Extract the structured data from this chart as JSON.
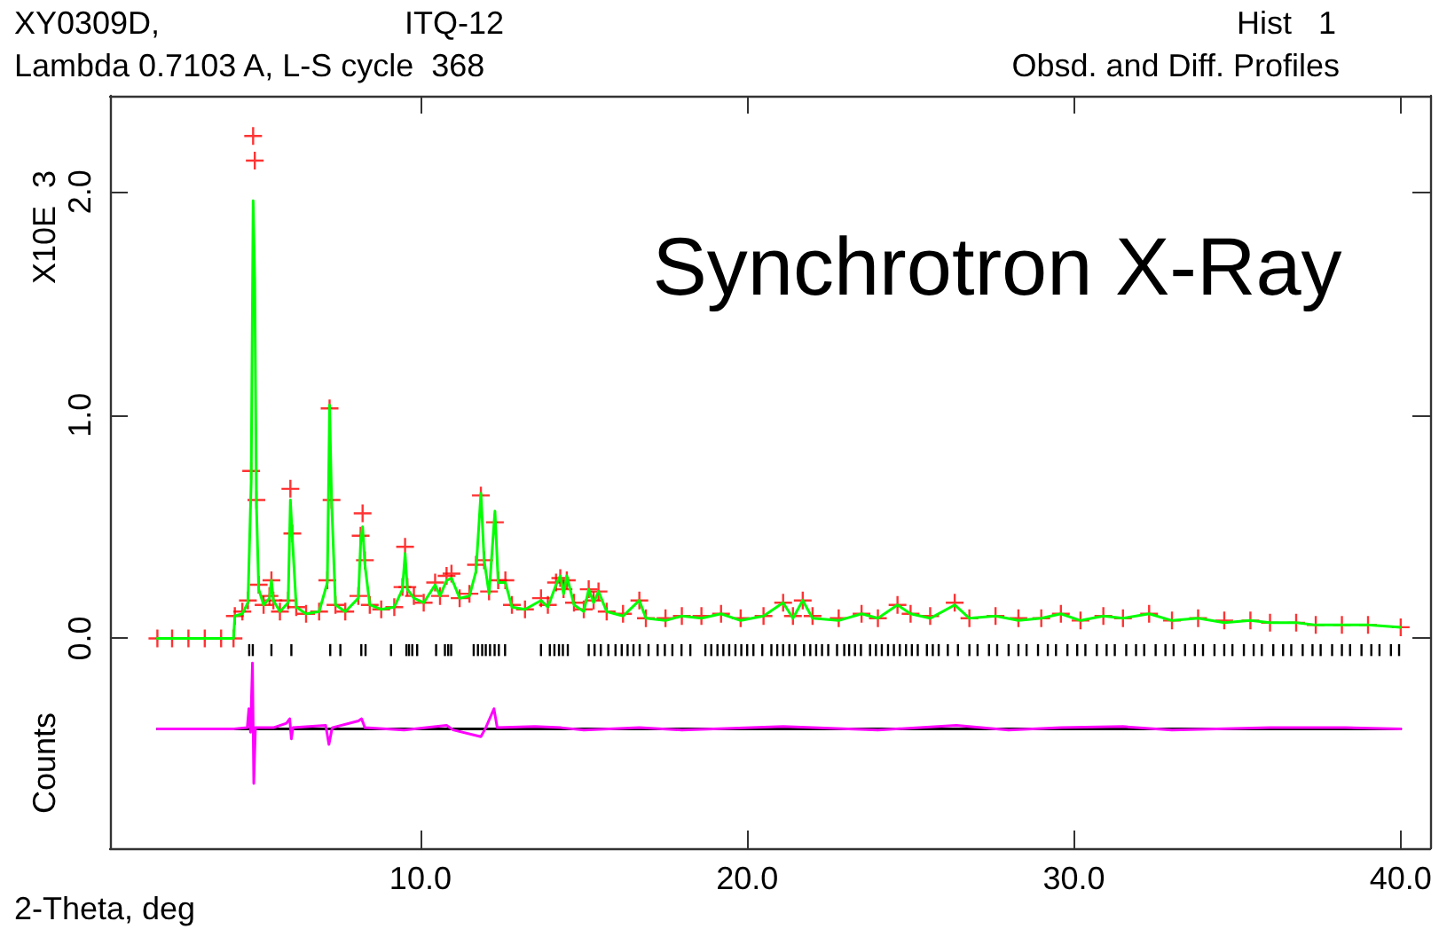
{
  "chart_data": {
    "type": "line",
    "title": "XY0309D,",
    "xlabel": "2-Theta, deg",
    "ylabel": "Counts",
    "annotations": [
      "ITQ-12",
      "Hist   1",
      "Lambda 0.7103 A, L-S cycle  368",
      "Obsd. and Diff. Profiles",
      "X10E  3",
      "Synchrotron X-Ray"
    ],
    "xlim": [
      0.5,
      40.9
    ],
    "xticks": [
      {
        "value": 10,
        "label": "10.0"
      },
      {
        "value": 20,
        "label": "20.0"
      },
      {
        "value": 30,
        "label": "30.0"
      },
      {
        "value": 40,
        "label": "40.0"
      }
    ],
    "ylim": [
      -0.94,
      2.43
    ],
    "yticks": [
      {
        "value": 0,
        "label": "0.0"
      },
      {
        "value": 1,
        "label": "1.0"
      },
      {
        "value": 2,
        "label": "2.0"
      }
    ],
    "grid": false,
    "series": [
      {
        "type": "scatter",
        "marker": "cross",
        "color": "#ff0000",
        "x": [
          1.95,
          2.4,
          2.9,
          3.4,
          3.9,
          4.28,
          4.32,
          4.55,
          4.72,
          4.82,
          4.88,
          4.93,
          4.98,
          5.05,
          5.2,
          5.38,
          5.44,
          5.5,
          5.7,
          5.95,
          6.02,
          6.08,
          6.2,
          6.5,
          6.9,
          7.15,
          7.22,
          7.28,
          7.4,
          7.7,
          8.1,
          8.17,
          8.23,
          8.3,
          8.45,
          8.8,
          9.2,
          9.45,
          9.53,
          9.6,
          9.8,
          10.1,
          10.45,
          10.6,
          10.8,
          10.95,
          11.2,
          11.5,
          11.7,
          11.85,
          11.95,
          12.1,
          12.28,
          12.38,
          12.6,
          12.8,
          13.2,
          13.69,
          13.9,
          14.15,
          14.28,
          14.38,
          14.48,
          14.7,
          15.0,
          15.15,
          15.3,
          15.45,
          15.7,
          16.2,
          16.7,
          16.9,
          17.5,
          18.0,
          18.6,
          19.2,
          19.8,
          20.5,
          21.1,
          21.4,
          21.7,
          22.0,
          22.8,
          23.5,
          24.0,
          24.6,
          25.0,
          25.6,
          26.35,
          26.8,
          27.6,
          28.3,
          29.0,
          29.6,
          30.2,
          30.9,
          31.5,
          32.3,
          33.0,
          33.8,
          34.6,
          35.4,
          36.0,
          36.8,
          37.4,
          38.2,
          39.0,
          40.0
        ],
        "values": [
          0,
          0,
          0,
          0,
          0,
          0,
          0.1,
          0.12,
          0.17,
          0.75,
          2.25,
          2.14,
          0.62,
          0.24,
          0.15,
          0.19,
          0.26,
          0.17,
          0.12,
          0.17,
          0.67,
          0.47,
          0.14,
          0.11,
          0.12,
          0.26,
          1.03,
          0.62,
          0.15,
          0.12,
          0.19,
          0.46,
          0.56,
          0.35,
          0.15,
          0.13,
          0.14,
          0.23,
          0.41,
          0.23,
          0.19,
          0.16,
          0.25,
          0.19,
          0.28,
          0.29,
          0.18,
          0.2,
          0.33,
          0.64,
          0.35,
          0.21,
          0.52,
          0.26,
          0.26,
          0.15,
          0.13,
          0.18,
          0.15,
          0.25,
          0.27,
          0.22,
          0.26,
          0.16,
          0.13,
          0.22,
          0.17,
          0.21,
          0.12,
          0.11,
          0.17,
          0.09,
          0.09,
          0.1,
          0.1,
          0.11,
          0.09,
          0.1,
          0.16,
          0.1,
          0.17,
          0.1,
          0.09,
          0.11,
          0.09,
          0.15,
          0.11,
          0.1,
          0.16,
          0.09,
          0.1,
          0.09,
          0.09,
          0.11,
          0.08,
          0.1,
          0.09,
          0.11,
          0.08,
          0.09,
          0.08,
          0.08,
          0.07,
          0.07,
          0.06,
          0.06,
          0.06,
          0.05
        ]
      },
      {
        "marker": "none",
        "color": "#00ff00",
        "x": [
          1.95,
          2.4,
          2.9,
          3.4,
          3.9,
          4.28,
          4.32,
          4.55,
          4.72,
          4.82,
          4.88,
          4.93,
          4.98,
          5.05,
          5.2,
          5.38,
          5.44,
          5.5,
          5.7,
          5.95,
          6.02,
          6.08,
          6.2,
          6.5,
          6.9,
          7.15,
          7.22,
          7.28,
          7.4,
          7.7,
          8.1,
          8.17,
          8.23,
          8.3,
          8.45,
          8.8,
          9.2,
          9.45,
          9.53,
          9.6,
          9.8,
          10.1,
          10.45,
          10.6,
          10.8,
          10.95,
          11.2,
          11.5,
          11.7,
          11.85,
          11.95,
          12.1,
          12.28,
          12.38,
          12.6,
          12.8,
          13.2,
          13.69,
          13.9,
          14.15,
          14.28,
          14.38,
          14.48,
          14.7,
          15.0,
          15.15,
          15.3,
          15.45,
          15.7,
          16.2,
          16.7,
          16.9,
          17.5,
          18.0,
          18.6,
          19.2,
          19.8,
          20.5,
          21.1,
          21.4,
          21.7,
          22.0,
          22.8,
          23.5,
          24.0,
          24.6,
          25.0,
          25.6,
          26.35,
          26.8,
          27.6,
          28.3,
          29.0,
          29.6,
          30.2,
          30.9,
          31.5,
          32.3,
          33.0,
          33.8,
          34.6,
          35.4,
          36.0,
          36.8,
          37.4,
          38.2,
          39.0,
          40.0
        ],
        "values": [
          0,
          0,
          0,
          0,
          0,
          0,
          0.1,
          0.11,
          0.16,
          0.7,
          1.96,
          1.6,
          0.6,
          0.22,
          0.15,
          0.18,
          0.26,
          0.17,
          0.12,
          0.16,
          0.62,
          0.45,
          0.14,
          0.11,
          0.12,
          0.25,
          1.045,
          0.62,
          0.15,
          0.12,
          0.18,
          0.43,
          0.5,
          0.33,
          0.15,
          0.13,
          0.14,
          0.22,
          0.38,
          0.22,
          0.18,
          0.16,
          0.24,
          0.19,
          0.26,
          0.27,
          0.18,
          0.19,
          0.3,
          0.65,
          0.35,
          0.2,
          0.57,
          0.25,
          0.25,
          0.14,
          0.13,
          0.17,
          0.14,
          0.24,
          0.28,
          0.2,
          0.28,
          0.15,
          0.12,
          0.22,
          0.16,
          0.21,
          0.12,
          0.1,
          0.17,
          0.09,
          0.08,
          0.1,
          0.09,
          0.11,
          0.08,
          0.1,
          0.16,
          0.09,
          0.17,
          0.09,
          0.08,
          0.11,
          0.09,
          0.15,
          0.11,
          0.09,
          0.15,
          0.09,
          0.1,
          0.08,
          0.09,
          0.11,
          0.08,
          0.1,
          0.09,
          0.11,
          0.08,
          0.09,
          0.07,
          0.08,
          0.07,
          0.07,
          0.06,
          0.06,
          0.06,
          0.05
        ]
      },
      {
        "type": "bar",
        "color": "#000000",
        "x": [
          4.76,
          4.87,
          5.44,
          6.05,
          7.24,
          7.55,
          8.19,
          8.32,
          9.1,
          9.57,
          9.65,
          9.75,
          9.9,
          10.48,
          10.75,
          10.85,
          10.94,
          11.63,
          11.76,
          11.89,
          12.0,
          12.13,
          12.27,
          12.4,
          12.59,
          13.69,
          13.96,
          14.1,
          14.24,
          14.36,
          14.51,
          15.15,
          15.33,
          15.52,
          15.75,
          15.97,
          16.16,
          16.34,
          16.52,
          16.71,
          16.98,
          17.26,
          17.48,
          17.71,
          17.99,
          18.26,
          18.72,
          18.9,
          19.09,
          19.27,
          19.45,
          19.64,
          19.82,
          20.0,
          20.19,
          20.46,
          20.74,
          20.92,
          21.1,
          21.29,
          21.47,
          21.74,
          21.93,
          22.11,
          22.29,
          22.48,
          22.75,
          22.97,
          23.12,
          23.3,
          23.48,
          23.76,
          23.94,
          24.12,
          24.31,
          24.49,
          24.67,
          24.86,
          25.04,
          25.22,
          25.5,
          25.68,
          25.86,
          26.14,
          26.45,
          26.8,
          27.05,
          27.4,
          27.65,
          28.0,
          28.3,
          28.55,
          28.9,
          29.2,
          29.45,
          29.8,
          30.1,
          30.35,
          30.7,
          31.0,
          31.25,
          31.6,
          31.9,
          32.15,
          32.5,
          32.8,
          33.05,
          33.4,
          33.7,
          33.95,
          34.3,
          34.6,
          34.85,
          35.2,
          35.5,
          35.75,
          36.1,
          36.4,
          36.65,
          37.0,
          37.3,
          37.55,
          37.9,
          38.2,
          38.45,
          38.8,
          39.1,
          39.35,
          39.7,
          39.95
        ],
        "values": [
          -0.053,
          -0.053,
          -0.053,
          -0.053,
          -0.053,
          -0.053,
          -0.053,
          -0.053,
          -0.053,
          -0.053,
          -0.053,
          -0.053,
          -0.053,
          -0.053,
          -0.053,
          -0.053,
          -0.053,
          -0.053,
          -0.053,
          -0.053,
          -0.053,
          -0.053,
          -0.053,
          -0.053,
          -0.053,
          -0.053,
          -0.053,
          -0.053,
          -0.053,
          -0.053,
          -0.053,
          -0.053,
          -0.053,
          -0.053,
          -0.053,
          -0.053,
          -0.053,
          -0.053,
          -0.053,
          -0.053,
          -0.053,
          -0.053,
          -0.053,
          -0.053,
          -0.053,
          -0.053,
          -0.053,
          -0.053,
          -0.053,
          -0.053,
          -0.053,
          -0.053,
          -0.053,
          -0.053,
          -0.053,
          -0.053,
          -0.053,
          -0.053,
          -0.053,
          -0.053,
          -0.053,
          -0.053,
          -0.053,
          -0.053,
          -0.053,
          -0.053,
          -0.053,
          -0.053,
          -0.053,
          -0.053,
          -0.053,
          -0.053,
          -0.053,
          -0.053,
          -0.053,
          -0.053,
          -0.053,
          -0.053,
          -0.053,
          -0.053,
          -0.053,
          -0.053,
          -0.053,
          -0.053,
          -0.053,
          -0.053,
          -0.053,
          -0.053,
          -0.053,
          -0.053,
          -0.053,
          -0.053,
          -0.053,
          -0.053,
          -0.053,
          -0.053,
          -0.053,
          -0.053,
          -0.053,
          -0.053,
          -0.053,
          -0.053,
          -0.053,
          -0.053,
          -0.053,
          -0.053,
          -0.053,
          -0.053,
          -0.053,
          -0.053,
          -0.053,
          -0.053,
          -0.053,
          -0.053,
          -0.053,
          -0.053,
          -0.053,
          -0.053,
          -0.053,
          -0.053,
          -0.053,
          -0.053,
          -0.053,
          -0.053,
          -0.053,
          -0.053,
          -0.053,
          -0.053,
          -0.053,
          -0.053
        ],
        "base": [
          -0.026,
          -0.026,
          -0.026,
          -0.026,
          -0.026,
          -0.026,
          -0.026,
          -0.026,
          -0.026,
          -0.026,
          -0.026,
          -0.026,
          -0.026,
          -0.026,
          -0.026,
          -0.026,
          -0.026,
          -0.026,
          -0.026,
          -0.026,
          -0.026,
          -0.026,
          -0.026,
          -0.026,
          -0.026,
          -0.026,
          -0.026,
          -0.026,
          -0.026,
          -0.026,
          -0.026,
          -0.026,
          -0.026,
          -0.026,
          -0.026,
          -0.026,
          -0.026,
          -0.026,
          -0.026,
          -0.026,
          -0.026,
          -0.026,
          -0.026,
          -0.026,
          -0.026,
          -0.026,
          -0.026,
          -0.026,
          -0.026,
          -0.026,
          -0.026,
          -0.026,
          -0.026,
          -0.026,
          -0.026,
          -0.026,
          -0.026,
          -0.026,
          -0.026,
          -0.026,
          -0.026,
          -0.026,
          -0.026,
          -0.026,
          -0.026,
          -0.026,
          -0.026,
          -0.026,
          -0.026,
          -0.026,
          -0.026,
          -0.026,
          -0.026,
          -0.026,
          -0.026,
          -0.026,
          -0.026,
          -0.026,
          -0.026,
          -0.026,
          -0.026,
          -0.026,
          -0.026,
          -0.026,
          -0.026,
          -0.026,
          -0.026,
          -0.026,
          -0.026,
          -0.026,
          -0.026,
          -0.026,
          -0.026,
          -0.026,
          -0.026,
          -0.026,
          -0.026,
          -0.026,
          -0.026,
          -0.026,
          -0.026,
          -0.026,
          -0.026,
          -0.026,
          -0.026,
          -0.026,
          -0.026,
          -0.026,
          -0.026,
          -0.026,
          -0.026,
          -0.026,
          -0.026,
          -0.026,
          -0.026,
          -0.026,
          -0.026,
          -0.026,
          -0.026,
          -0.026,
          -0.026,
          -0.026,
          -0.026,
          -0.026,
          -0.026,
          -0.026,
          -0.026,
          -0.026,
          -0.026,
          -0.026
        ]
      },
      {
        "marker": "none",
        "color": "#000000",
        "x": [
          1.95,
          40.0
        ],
        "values": [
          -0.405,
          -0.405
        ]
      },
      {
        "marker": "none",
        "color": "#ff00ff",
        "x": [
          1.95,
          4.3,
          4.7,
          4.75,
          4.8,
          4.86,
          4.9,
          4.95,
          5.5,
          5.9,
          6.0,
          6.05,
          6.1,
          7.1,
          7.2,
          7.3,
          8.1,
          8.2,
          8.3,
          9.5,
          10.8,
          11.0,
          11.85,
          12.0,
          12.25,
          12.35,
          13.5,
          14.3,
          15.0,
          16.7,
          18.0,
          21.1,
          24.0,
          26.4,
          28.0,
          29.6,
          31.5,
          33.0,
          36.0,
          38.3,
          40.0
        ],
        "values": [
          -0.405,
          -0.405,
          -0.4,
          -0.315,
          -0.42,
          -0.11,
          -0.65,
          -0.4,
          -0.4,
          -0.38,
          -0.36,
          -0.45,
          -0.4,
          -0.39,
          -0.475,
          -0.4,
          -0.37,
          -0.36,
          -0.4,
          -0.41,
          -0.39,
          -0.41,
          -0.44,
          -0.4,
          -0.315,
          -0.4,
          -0.395,
          -0.4,
          -0.41,
          -0.4,
          -0.41,
          -0.395,
          -0.41,
          -0.39,
          -0.41,
          -0.4,
          -0.395,
          -0.41,
          -0.4,
          -0.4,
          -0.405
        ]
      }
    ]
  }
}
